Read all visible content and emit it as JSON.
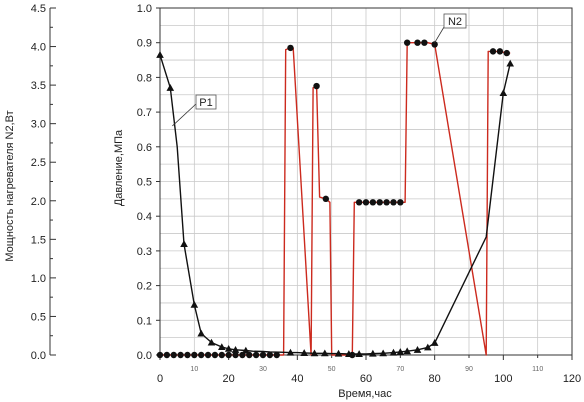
{
  "chart_data": {
    "type": "line",
    "title": "",
    "xlabel": "Время,час",
    "ylabel_left": "Мощность нагревателя N2,Вт",
    "ylabel_right": "Давление,МПа",
    "xlim": [
      0,
      120
    ],
    "ylim_left": [
      0,
      4.5
    ],
    "ylim_right": [
      0,
      1.0
    ],
    "grid": true,
    "x_ticks": [
      "0",
      "20",
      "40",
      "60",
      "80",
      "100",
      "120"
    ],
    "x_minor_ticks": [
      "10",
      "30",
      "50",
      "70",
      "90",
      "110"
    ],
    "y_left_ticks": [
      "0.0",
      "0.5",
      "1.0",
      "1.5",
      "2.0",
      "2.5",
      "3.0",
      "3.5",
      "4.0",
      "4.5"
    ],
    "y_right_ticks": [
      "0.0",
      "0.1",
      "0.2",
      "0.3",
      "0.4",
      "0.5",
      "0.6",
      "0.7",
      "0.8",
      "0.9",
      "1.0"
    ],
    "series": [
      {
        "name": "P1",
        "axis": "right",
        "marker": "triangle",
        "color": "#111111",
        "x": [
          0,
          3,
          5,
          7,
          10,
          12,
          15,
          18,
          20,
          22,
          25,
          27,
          30,
          32,
          35,
          38,
          40,
          42,
          45,
          48,
          50,
          52,
          55,
          58,
          60,
          62,
          65,
          68,
          70,
          72,
          75,
          78,
          80,
          95,
          100,
          102
        ],
        "y": [
          0.865,
          0.77,
          0.6,
          0.32,
          0.145,
          0.062,
          0.036,
          0.023,
          0.018,
          0.015,
          0.013,
          0.011,
          0.01,
          0.009,
          0.008,
          0.007,
          0.007,
          0.006,
          0.005,
          0.005,
          0.004,
          0.004,
          0.003,
          0.003,
          0.003,
          0.004,
          0.005,
          0.007,
          0.009,
          0.011,
          0.015,
          0.022,
          0.035,
          0.34,
          0.755,
          0.84
        ]
      },
      {
        "name": "N2",
        "axis": "right",
        "marker": "circle",
        "color": "#cc2a1e",
        "x": [
          0,
          2,
          4,
          6,
          8,
          10,
          12,
          14,
          16,
          18,
          20,
          22,
          24,
          26,
          28,
          30,
          32,
          34,
          36,
          36.6,
          38,
          38.8,
          44,
          44.6,
          45.6,
          46.5,
          48.3,
          49.5,
          50,
          52,
          54,
          56,
          56.6,
          58,
          60,
          62,
          64,
          66,
          68,
          70,
          71.4,
          72,
          73,
          75,
          77,
          78,
          80,
          95,
          95.6,
          97,
          99,
          101,
          102
        ],
        "y": [
          0,
          0,
          0,
          0,
          0,
          0,
          0,
          0,
          0,
          0,
          0,
          0,
          0,
          0,
          0,
          0,
          0,
          0,
          0,
          0.88,
          0.885,
          0.885,
          0,
          0.77,
          0.775,
          0.455,
          0.45,
          0.44,
          0,
          0,
          0,
          0,
          0.44,
          0.44,
          0.44,
          0.44,
          0.44,
          0.44,
          0.44,
          0.44,
          0.44,
          0.9,
          0.9,
          0.9,
          0.9,
          0.9,
          0.895,
          0,
          0.875,
          0.875,
          0.875,
          0.87,
          0.87
        ]
      }
    ],
    "markers": {
      "P1": [
        0,
        3,
        7,
        10,
        12,
        15,
        18,
        20,
        22,
        25,
        38,
        42,
        45,
        48,
        52,
        55,
        58,
        62,
        65,
        68,
        70,
        72,
        75,
        78,
        80,
        100,
        102
      ],
      "N2": [
        0,
        2,
        4,
        6,
        8,
        10,
        12,
        14,
        16,
        18,
        20,
        22,
        24,
        26,
        28,
        30,
        32,
        34,
        38,
        45.6,
        48.3,
        56,
        58,
        60,
        62,
        64,
        66,
        68,
        70,
        72,
        75,
        77,
        80,
        97,
        99,
        101
      ]
    }
  }
}
